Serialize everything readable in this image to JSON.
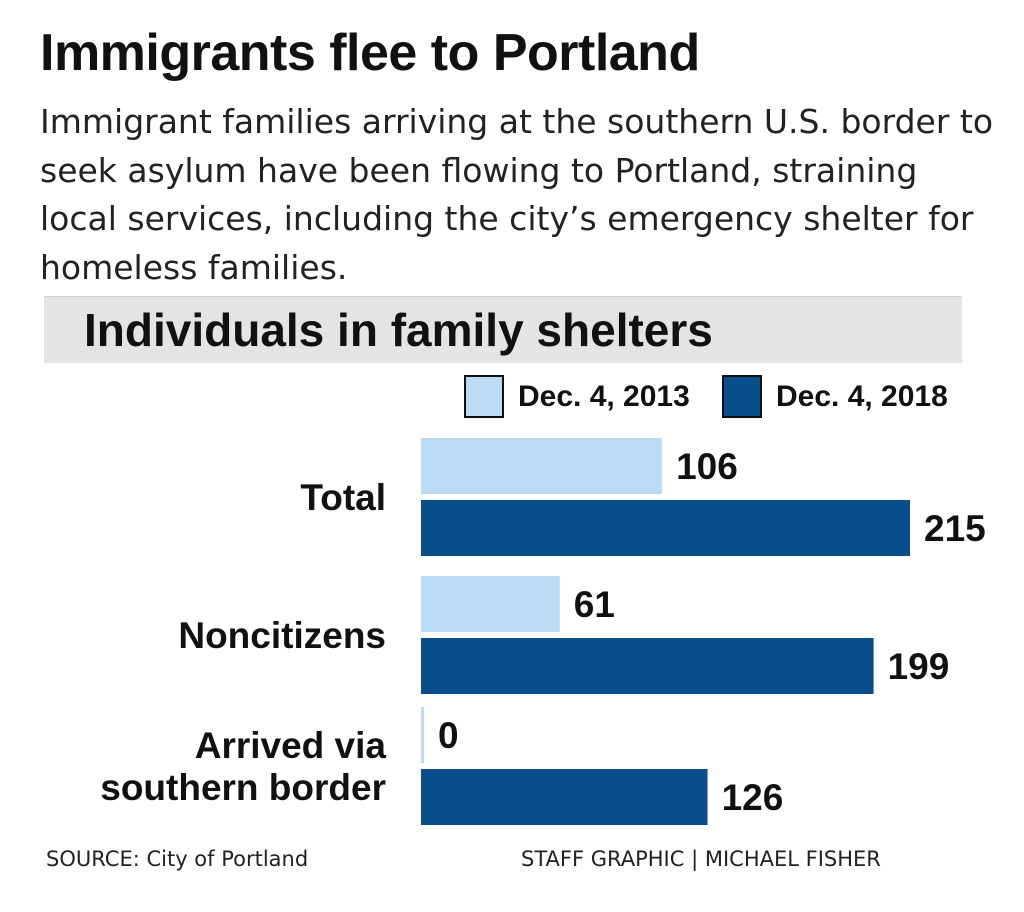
{
  "headline": "Immigrants flee to Portland",
  "intro": "Immigrant families arriving at the southern U.S. border to seek asylum have been flowing to Portland, straining local services, including the city’s emergency shelter for homeless families.",
  "footer": {
    "source": "SOURCE: City of Portland",
    "credit": "STAFF GRAPHIC | MICHAEL FISHER"
  },
  "chart_data": {
    "type": "bar",
    "orientation": "horizontal",
    "title": "Individuals in family shelters",
    "categories": [
      [
        "Total"
      ],
      [
        "Noncitizens"
      ],
      [
        "Arrived via",
        "southern border"
      ]
    ],
    "series": [
      {
        "name": "Dec. 4, 2013",
        "color": "#bcdcf3",
        "values": [
          106,
          61,
          0
        ]
      },
      {
        "name": "Dec. 4, 2018",
        "color": "#0a4f8c",
        "values": [
          215,
          199,
          126
        ]
      }
    ],
    "xlim": [
      0,
      215
    ],
    "grid": false,
    "legend": "top-right",
    "data_labels": true
  }
}
